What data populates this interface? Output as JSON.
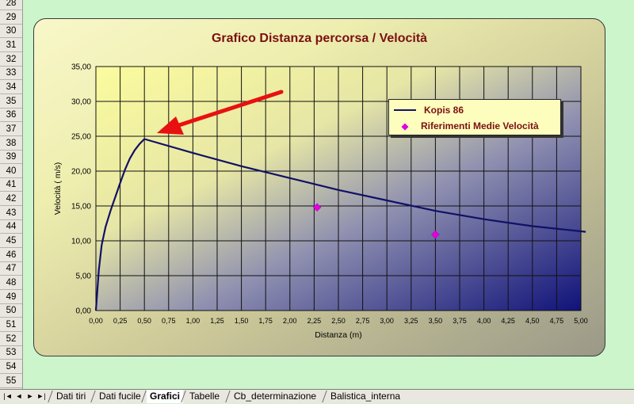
{
  "rows": [
    "28",
    "29",
    "30",
    "31",
    "32",
    "33",
    "34",
    "35",
    "36",
    "37",
    "38",
    "39",
    "40",
    "41",
    "42",
    "43",
    "44",
    "45",
    "46",
    "47",
    "48",
    "49",
    "50",
    "51",
    "52",
    "53",
    "54",
    "55"
  ],
  "sheet_tabs": [
    {
      "label": "Dati tiri",
      "active": false
    },
    {
      "label": "Dati fucile",
      "active": false
    },
    {
      "label": "Grafici",
      "active": true
    },
    {
      "label": "Tabelle",
      "active": false
    },
    {
      "label": "Cb_determinazione",
      "active": false
    },
    {
      "label": "Balistica_interna",
      "active": false
    }
  ],
  "nav_buttons": [
    "|◄",
    "◄",
    "►",
    "►|"
  ],
  "colors": {
    "series_line": "#111166",
    "points": "#e000e0",
    "arrow": "#e81010",
    "title": "#7a1010"
  },
  "chart_data": {
    "type": "line",
    "title": "Grafico Distanza percorsa / Velocità",
    "xlabel": "Distanza (m)",
    "ylabel": "Velocità ( m/s)",
    "xlim": [
      0,
      5
    ],
    "ylim": [
      0,
      35
    ],
    "x_ticks": [
      "0,00",
      "0,25",
      "0,50",
      "0,75",
      "1,00",
      "1,25",
      "1,50",
      "1,75",
      "2,00",
      "2,25",
      "2,50",
      "2,75",
      "3,00",
      "3,25",
      "3,50",
      "3,75",
      "4,00",
      "4,25",
      "4,50",
      "4,75",
      "5,00"
    ],
    "y_ticks": [
      "0,00",
      "5,00",
      "10,00",
      "15,00",
      "20,00",
      "25,00",
      "30,00",
      "35,00"
    ],
    "grid": true,
    "legend_position": "top-right",
    "series": [
      {
        "name": "Kopis 86",
        "type": "line",
        "x": [
          0,
          0.03,
          0.06,
          0.1,
          0.15,
          0.2,
          0.25,
          0.3,
          0.35,
          0.4,
          0.45,
          0.5,
          1.0,
          1.5,
          2.0,
          2.5,
          3.0,
          3.5,
          4.0,
          4.5,
          5.05
        ],
        "y": [
          0,
          5.8,
          9.4,
          12.0,
          14.3,
          16.3,
          18.3,
          20.2,
          21.8,
          23.0,
          23.9,
          24.6,
          22.6,
          20.7,
          19.0,
          17.3,
          15.8,
          14.3,
          13.1,
          12.1,
          11.3
        ]
      },
      {
        "name": "Riferimenti Medie Velocità",
        "type": "scatter",
        "x": [
          2.28,
          3.5
        ],
        "y": [
          14.8,
          10.9
        ]
      }
    ]
  }
}
